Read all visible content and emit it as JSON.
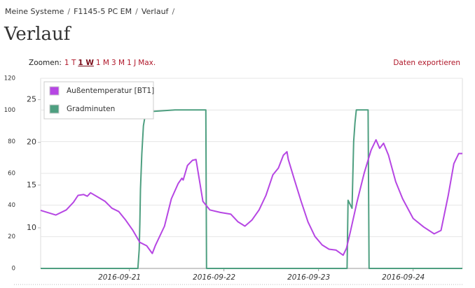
{
  "breadcrumb": {
    "items": [
      "Meine Systeme",
      "F1145-5 PC EM",
      "Verlauf"
    ],
    "separator": "/"
  },
  "page_title": "Verlauf",
  "zoom": {
    "label": "Zoomen:",
    "options": [
      "1 T",
      "1 W",
      "1 M",
      "3 M",
      "1 J",
      "Max."
    ],
    "active": 1
  },
  "export_label": "Daten exportieren",
  "chart_data": {
    "type": "line",
    "xlim": [
      "2016-09-20T01:30",
      "2016-09-24T12:30"
    ],
    "xticks": [
      "2016-09-21",
      "2016-09-22",
      "2016-09-23",
      "2016-09-24"
    ],
    "ylim": [
      0,
      120
    ],
    "yticks": [
      0,
      20,
      40,
      60,
      80,
      100,
      120
    ],
    "y2lim": [
      5.25,
      27.5
    ],
    "y2ticks": [
      10,
      15,
      20,
      25
    ],
    "grid": true,
    "legend": "top-left",
    "series": [
      {
        "name": "Außentemperatur [BT1]",
        "color": "#b646e3",
        "axis": "y2",
        "x": [
          "2016-09-20T01:30",
          "2016-09-20T05:20",
          "2016-09-20T08:00",
          "2016-09-20T09:50",
          "2016-09-20T11:00",
          "2016-09-20T12:25",
          "2016-09-20T13:20",
          "2016-09-20T14:10",
          "2016-09-20T16:00",
          "2016-09-20T17:50",
          "2016-09-20T19:35",
          "2016-09-20T21:20",
          "2016-09-20T23:05",
          "2016-09-21T00:55",
          "2016-09-21T02:40",
          "2016-09-21T04:25",
          "2016-09-21T05:50",
          "2016-09-21T06:35",
          "2016-09-21T08:55",
          "2016-09-21T10:40",
          "2016-09-21T12:25",
          "2016-09-21T13:20",
          "2016-09-21T13:40",
          "2016-09-21T14:45",
          "2016-09-21T16:00",
          "2016-09-21T16:55",
          "2016-09-21T18:40",
          "2016-09-21T20:25",
          "2016-09-21T23:05",
          "2016-09-22T01:45",
          "2016-09-22T03:35",
          "2016-09-22T05:20",
          "2016-09-22T07:05",
          "2016-09-22T08:55",
          "2016-09-22T10:40",
          "2016-09-22T12:25",
          "2016-09-22T13:50",
          "2016-09-22T15:05",
          "2016-09-22T16:00",
          "2016-09-22T16:20",
          "2016-09-22T17:50",
          "2016-09-22T19:35",
          "2016-09-22T21:20",
          "2016-09-22T23:05",
          "2016-09-23T00:55",
          "2016-09-23T02:40",
          "2016-09-23T04:25",
          "2016-09-23T06:15",
          "2016-09-23T07:05",
          "2016-09-23T08:00",
          "2016-09-23T09:45",
          "2016-09-23T11:35",
          "2016-09-23T13:20",
          "2016-09-23T14:35",
          "2016-09-23T15:30",
          "2016-09-23T16:30",
          "2016-09-23T17:45",
          "2016-09-23T19:35",
          "2016-09-23T21:20",
          "2016-09-24T00:00",
          "2016-09-24T02:40",
          "2016-09-24T05:20",
          "2016-09-24T07:05",
          "2016-09-24T08:55",
          "2016-09-24T10:20",
          "2016-09-24T11:35",
          "2016-09-24T12:30"
        ],
        "values": [
          12.05,
          11.5,
          12.1,
          13.0,
          13.8,
          13.9,
          13.7,
          14.1,
          13.6,
          13.1,
          12.3,
          11.9,
          10.9,
          9.7,
          8.3,
          7.9,
          7.0,
          7.9,
          10.2,
          13.4,
          15.2,
          15.8,
          15.6,
          17.3,
          17.9,
          18.0,
          13.1,
          12.1,
          11.8,
          11.6,
          10.7,
          10.2,
          10.9,
          12.1,
          13.8,
          16.2,
          17.0,
          18.5,
          18.9,
          18.0,
          15.7,
          13.1,
          10.7,
          9.0,
          8.0,
          7.5,
          7.4,
          6.8,
          7.6,
          9.4,
          13.0,
          16.4,
          19.1,
          20.3,
          19.3,
          19.9,
          18.5,
          15.4,
          13.4,
          11.1,
          10.1,
          9.3,
          9.7,
          13.8,
          17.5,
          18.7,
          18.7
        ]
      },
      {
        "name": "Gradminuten",
        "color": "#4e9f80",
        "axis": "y",
        "x": [
          "2016-09-20T01:30",
          "2016-09-21T02:10",
          "2016-09-21T02:30",
          "2016-09-21T02:40",
          "2016-09-21T02:50",
          "2016-09-21T03:10",
          "2016-09-21T03:35",
          "2016-09-21T03:55",
          "2016-09-21T05:20",
          "2016-09-21T11:35",
          "2016-09-21T19:25",
          "2016-09-21T19:35",
          "2016-09-23T07:15",
          "2016-09-23T07:30",
          "2016-09-23T08:30",
          "2016-09-23T08:55",
          "2016-09-23T09:15",
          "2016-09-23T09:35",
          "2016-09-23T12:35",
          "2016-09-23T12:50",
          "2016-09-24T12:30"
        ],
        "values": [
          0,
          0,
          12,
          28,
          50,
          72,
          90,
          95,
          99,
          100,
          100,
          0,
          0,
          43,
          38,
          80,
          92,
          100,
          100,
          0,
          0
        ]
      }
    ]
  }
}
